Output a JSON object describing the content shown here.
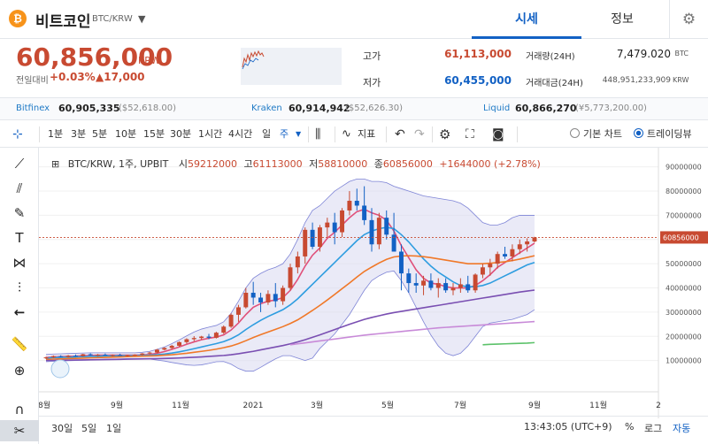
{
  "header": {
    "coin_name": "비트코인",
    "coin_code": "BTC/KRW",
    "tab_price": "시세",
    "tab_info": "정보"
  },
  "price": {
    "current": "60,856,000",
    "currency": "KRW",
    "change_label": "전일대비",
    "change_pct": "+0.03%",
    "change_abs": "▲17,000"
  },
  "stats": {
    "high_label": "고가",
    "high": "61,113,000",
    "low_label": "저가",
    "low": "60,455,000",
    "vol_label": "거래량(24H)",
    "vol": "7,479.020",
    "vol_unit": "BTC",
    "amt_label": "거래대금(24H)",
    "amt": "448,951,233,909",
    "amt_unit": "KRW"
  },
  "exchanges": [
    {
      "name": "Bitfinex",
      "price": "60,905,335",
      "usd": "($52,618.00)"
    },
    {
      "name": "Kraken",
      "price": "60,914,942",
      "usd": "($52,626.30)"
    },
    {
      "name": "Liquid",
      "price": "60,866,270",
      "usd": "(¥5,773,200.00)"
    }
  ],
  "toolbar": {
    "intervals": [
      "1분",
      "3분",
      "5분",
      "10분",
      "15분",
      "30분",
      "1시간",
      "4시간",
      "일",
      "주"
    ],
    "indicator": "지표",
    "basic_chart": "기본 차트",
    "trading_view": "트레이딩뷰"
  },
  "legend": {
    "symbol": "BTC/KRW, 1주, UPBIT",
    "open_l": "시",
    "open": "59212000",
    "high_l": "고",
    "high": "61113000",
    "low_l": "저",
    "low": "58810000",
    "close_l": "종",
    "close": "60856000",
    "change": "+1644000 (+2.78%)"
  },
  "bottom": {
    "ranges": [
      "30일",
      "5일",
      "1일"
    ],
    "time": "13:43:05 (UTC+9)",
    "pct": "%",
    "log": "로그",
    "auto": "자동"
  },
  "colors": {
    "up": "#c84a31",
    "down": "#1261c4",
    "bb_fill": "#d8d8f0"
  },
  "chart_data": {
    "type": "candlestick",
    "x_labels": [
      "8월",
      "9월",
      "11월",
      "2021",
      "3월",
      "5월",
      "7월",
      "9월",
      "11월",
      "2"
    ],
    "y_ticks": [
      10000000,
      20000000,
      30000000,
      40000000,
      50000000,
      60000000,
      70000000,
      80000000,
      90000000
    ],
    "y_tick_labels": [
      "10000000",
      "20000000",
      "30000000",
      "40000000",
      "50000000",
      "60000000",
      "70000000",
      "80000000",
      "90000000"
    ],
    "ylim": [
      0,
      95000000
    ],
    "last_price_label": "60856000",
    "last_price": 60856000,
    "candles": [
      [
        11000000,
        11600000,
        10600000,
        11300000
      ],
      [
        11300000,
        12100000,
        11000000,
        11800000
      ],
      [
        11800000,
        12200000,
        11300000,
        11500000
      ],
      [
        11500000,
        12300000,
        11200000,
        12000000
      ],
      [
        12000000,
        12500000,
        11500000,
        11800000
      ],
      [
        11800000,
        12800000,
        11600000,
        12600000
      ],
      [
        12600000,
        13000000,
        12000000,
        12200000
      ],
      [
        12200000,
        12700000,
        11800000,
        12400000
      ],
      [
        12400000,
        12900000,
        12000000,
        12100000
      ],
      [
        12100000,
        12500000,
        11700000,
        12300000
      ],
      [
        12300000,
        12800000,
        11900000,
        12000000
      ],
      [
        12000000,
        12400000,
        11600000,
        12200000
      ],
      [
        12200000,
        12600000,
        11900000,
        12400000
      ],
      [
        12400000,
        13100000,
        12100000,
        12900000
      ],
      [
        12900000,
        13600000,
        12500000,
        13300000
      ],
      [
        13300000,
        14800000,
        13000000,
        14500000
      ],
      [
        14500000,
        15500000,
        14200000,
        15200000
      ],
      [
        15200000,
        16500000,
        14800000,
        16100000
      ],
      [
        16100000,
        17900000,
        15800000,
        17600000
      ],
      [
        17600000,
        19200000,
        17000000,
        18800000
      ],
      [
        18800000,
        20100000,
        18000000,
        19300000
      ],
      [
        19300000,
        20200000,
        18600000,
        19900000
      ],
      [
        19900000,
        21000000,
        18800000,
        19400000
      ],
      [
        19400000,
        21900000,
        19100000,
        21500000
      ],
      [
        21500000,
        24500000,
        21000000,
        24000000
      ],
      [
        24000000,
        29500000,
        23500000,
        28900000
      ],
      [
        28900000,
        33000000,
        26000000,
        32000000
      ],
      [
        32000000,
        40000000,
        31500000,
        38000000
      ],
      [
        38000000,
        42500000,
        33000000,
        36000000
      ],
      [
        36000000,
        38000000,
        30000000,
        34000000
      ],
      [
        34000000,
        39000000,
        33000000,
        37500000
      ],
      [
        37500000,
        42000000,
        32000000,
        34500000
      ],
      [
        34500000,
        41000000,
        33000000,
        40000000
      ],
      [
        40000000,
        50000000,
        39000000,
        48500000
      ],
      [
        48500000,
        55000000,
        46000000,
        53000000
      ],
      [
        53000000,
        65000000,
        50000000,
        64000000
      ],
      [
        64000000,
        67000000,
        56000000,
        57000000
      ],
      [
        57000000,
        66000000,
        55000000,
        65000000
      ],
      [
        65000000,
        69000000,
        61000000,
        67000000
      ],
      [
        67000000,
        71000000,
        58000000,
        63000000
      ],
      [
        63000000,
        73000000,
        61000000,
        72000000
      ],
      [
        72000000,
        80000000,
        70000000,
        76000000
      ],
      [
        76000000,
        81000000,
        72000000,
        74000000
      ],
      [
        74000000,
        82000000,
        66000000,
        68000000
      ],
      [
        68000000,
        73000000,
        55000000,
        58000000
      ],
      [
        58000000,
        71000000,
        56000000,
        69000000
      ],
      [
        69000000,
        72000000,
        60000000,
        62000000
      ],
      [
        62000000,
        71000000,
        55000000,
        55000000
      ],
      [
        55000000,
        58000000,
        39000000,
        46000000
      ],
      [
        46000000,
        48000000,
        38000000,
        42000000
      ],
      [
        42000000,
        46000000,
        38000000,
        41000000
      ],
      [
        41000000,
        45000000,
        37000000,
        43000000
      ],
      [
        43000000,
        46000000,
        39000000,
        40000000
      ],
      [
        40000000,
        44000000,
        36000000,
        42000000
      ],
      [
        42000000,
        44000000,
        38000000,
        39000000
      ],
      [
        39000000,
        42000000,
        37000000,
        40000000
      ],
      [
        40000000,
        44000000,
        38000000,
        41500000
      ],
      [
        41500000,
        45000000,
        38000000,
        39000000
      ],
      [
        39000000,
        46000000,
        38000000,
        45500000
      ],
      [
        45500000,
        50000000,
        44000000,
        48500000
      ],
      [
        48500000,
        52000000,
        45000000,
        50000000
      ],
      [
        50000000,
        55000000,
        48000000,
        54000000
      ],
      [
        54000000,
        57000000,
        52000000,
        53000000
      ],
      [
        53000000,
        58000000,
        51000000,
        56000000
      ],
      [
        56000000,
        60000000,
        54000000,
        58000000
      ],
      [
        58000000,
        60500000,
        55000000,
        59200000
      ],
      [
        59200000,
        61100000,
        58800000,
        60856000
      ]
    ],
    "ma_series": [
      {
        "color": "#e0507a",
        "values": [
          11200000,
          11500000,
          11600000,
          11700000,
          11800000,
          12000000,
          12100000,
          12200000,
          12200000,
          12200000,
          12200000,
          12200000,
          12200000,
          12300000,
          12500000,
          13000000,
          13700000,
          14600000,
          15600000,
          16700000,
          17700000,
          18600000,
          19200000,
          19700000,
          20600000,
          22600000,
          25500000,
          29000000,
          32000000,
          33500000,
          34500000,
          35000000,
          36000000,
          39000000,
          43500000,
          49000000,
          53500000,
          56500000,
          60500000,
          63000000,
          66000000,
          69000000,
          71500000,
          72500000,
          71000000,
          70000000,
          68000000,
          63500000,
          57500000,
          52500000,
          47500000,
          44000000,
          42000000,
          41500000,
          40500000,
          40000000,
          40000000,
          40000000,
          41000000,
          43000000,
          45500000,
          48500000,
          50500000,
          52500000,
          54500000,
          56500000,
          58500000
        ]
      },
      {
        "color": "#2e9de0",
        "values": [
          11000000,
          11200000,
          11300000,
          11400000,
          11500000,
          11600000,
          11700000,
          11800000,
          11900000,
          11900000,
          12000000,
          12000000,
          12000000,
          12100000,
          12200000,
          12400000,
          12700000,
          13100000,
          13600000,
          14200000,
          14900000,
          15600000,
          16300000,
          17000000,
          17800000,
          19000000,
          20600000,
          22800000,
          24800000,
          26600000,
          28200000,
          29600000,
          31000000,
          33000000,
          35500000,
          38500000,
          41500000,
          44500000,
          47500000,
          50500000,
          53500000,
          56500000,
          59500000,
          62000000,
          63500000,
          64500000,
          65000000,
          64500000,
          62000000,
          59000000,
          55500000,
          52000000,
          49000000,
          46500000,
          44500000,
          42500000,
          41000000,
          40500000,
          40500000,
          41000000,
          42000000,
          43500000,
          45000000,
          46500000,
          48000000,
          49500000,
          50500000
        ]
      },
      {
        "color": "#f07828",
        "values": [
          10500000,
          10600000,
          10700000,
          10800000,
          10900000,
          11000000,
          11100000,
          11200000,
          11300000,
          11400000,
          11500000,
          11600000,
          11700000,
          11800000,
          11900000,
          12000000,
          12200000,
          12400000,
          12700000,
          13000000,
          13400000,
          13800000,
          14200000,
          14700000,
          15300000,
          16000000,
          17000000,
          18200000,
          19500000,
          20700000,
          21800000,
          22900000,
          24000000,
          25300000,
          26800000,
          28700000,
          30700000,
          32800000,
          35000000,
          37300000,
          39700000,
          42000000,
          44500000,
          46800000,
          48600000,
          50300000,
          51800000,
          52800000,
          53200000,
          53300000,
          53200000,
          52900000,
          52500000,
          52000000,
          51500000,
          51000000,
          50500000,
          50000000,
          50000000,
          50000000,
          50200000,
          50500000,
          50800000,
          51300000,
          51900000,
          52600000,
          53300000
        ]
      },
      {
        "color": "#7a4fb2",
        "values": [
          10000000,
          10050000,
          10100000,
          10150000,
          10200000,
          10250000,
          10300000,
          10350000,
          10400000,
          10450000,
          10500000,
          10550000,
          10600000,
          10650000,
          10700000,
          10750000,
          10850000,
          10950000,
          11050000,
          11200000,
          11350000,
          11500000,
          11700000,
          11900000,
          12100000,
          12400000,
          12800000,
          13300000,
          13800000,
          14400000,
          15000000,
          15600000,
          16200000,
          16900000,
          17700000,
          18600000,
          19600000,
          20600000,
          21700000,
          22800000,
          23900000,
          25000000,
          26000000,
          27000000,
          27800000,
          28500000,
          29200000,
          29800000,
          30300000,
          30800000,
          31300000,
          31800000,
          32300000,
          32800000,
          33300000,
          33800000,
          34300000,
          34800000,
          35300000,
          35800000,
          36300000,
          36800000,
          37300000,
          37800000,
          38300000,
          38700000,
          39100000
        ]
      },
      {
        "color": "#c88ad8",
        "values": [
          null,
          null,
          null,
          null,
          null,
          null,
          null,
          null,
          null,
          null,
          null,
          null,
          null,
          null,
          null,
          null,
          null,
          null,
          null,
          null,
          null,
          null,
          null,
          null,
          null,
          null,
          null,
          null,
          null,
          null,
          null,
          null,
          null,
          16500000,
          16900000,
          17300000,
          17700000,
          18100000,
          18500000,
          18900000,
          19300000,
          19700000,
          20100000,
          20500000,
          20800000,
          21100000,
          21400000,
          21700000,
          22000000,
          22300000,
          22600000,
          22900000,
          23200000,
          23500000,
          23700000,
          23900000,
          24100000,
          24300000,
          24500000,
          24700000,
          24900000,
          25100000,
          25300000,
          25500000,
          25700000,
          25900000,
          26100000
        ]
      },
      {
        "color": "#5cc26a",
        "values": [
          null,
          null,
          null,
          null,
          null,
          null,
          null,
          null,
          null,
          null,
          null,
          null,
          null,
          null,
          null,
          null,
          null,
          null,
          null,
          null,
          null,
          null,
          null,
          null,
          null,
          null,
          null,
          null,
          null,
          null,
          null,
          null,
          null,
          null,
          null,
          null,
          null,
          null,
          null,
          null,
          null,
          null,
          null,
          null,
          null,
          null,
          null,
          null,
          null,
          null,
          null,
          null,
          null,
          null,
          null,
          null,
          null,
          null,
          null,
          16500000,
          16700000,
          16800000,
          16900000,
          17000000,
          17100000,
          17200000,
          17400000
        ]
      }
    ],
    "bollinger": {
      "upper": [
        12500000,
        12700000,
        12800000,
        12900000,
        13000000,
        13100000,
        13200000,
        13200000,
        13200000,
        13200000,
        13200000,
        13200000,
        13200000,
        13400000,
        13800000,
        14600000,
        15600000,
        17000000,
        18500000,
        20200000,
        21800000,
        23000000,
        23800000,
        24500000,
        26000000,
        29500000,
        34500000,
        40000000,
        44000000,
        46000000,
        47500000,
        48500000,
        50000000,
        54000000,
        60000000,
        67000000,
        72000000,
        74000000,
        77000000,
        80000000,
        82000000,
        84000000,
        85000000,
        85000000,
        84000000,
        84000000,
        83500000,
        82000000,
        81000000,
        80000000,
        79000000,
        78000000,
        77500000,
        77000000,
        76500000,
        76000000,
        75000000,
        73000000,
        70000000,
        67000000,
        66000000,
        66000000,
        67000000,
        69000000,
        70000000,
        70000000,
        70000000
      ],
      "lower": [
        9500000,
        9700000,
        9800000,
        9900000,
        10000000,
        10100000,
        10200000,
        10400000,
        10600000,
        10600000,
        10700000,
        10800000,
        10800000,
        10800000,
        10600000,
        10200000,
        9800000,
        9200000,
        8700000,
        8200000,
        8000000,
        8200000,
        8800000,
        9500000,
        9600000,
        8500000,
        6700000,
        5600000,
        5600000,
        7200000,
        9000000,
        10700000,
        12000000,
        12000000,
        11000000,
        10000000,
        11000000,
        15000000,
        18000000,
        21000000,
        25000000,
        29000000,
        34000000,
        39000000,
        43000000,
        45000000,
        46500000,
        47000000,
        43000000,
        38000000,
        32000000,
        26000000,
        20500000,
        16000000,
        13000000,
        12000000,
        13000000,
        16000000,
        20000000,
        24000000,
        25500000,
        26000000,
        26500000,
        27000000,
        28000000,
        29000000,
        31000000
      ]
    }
  }
}
